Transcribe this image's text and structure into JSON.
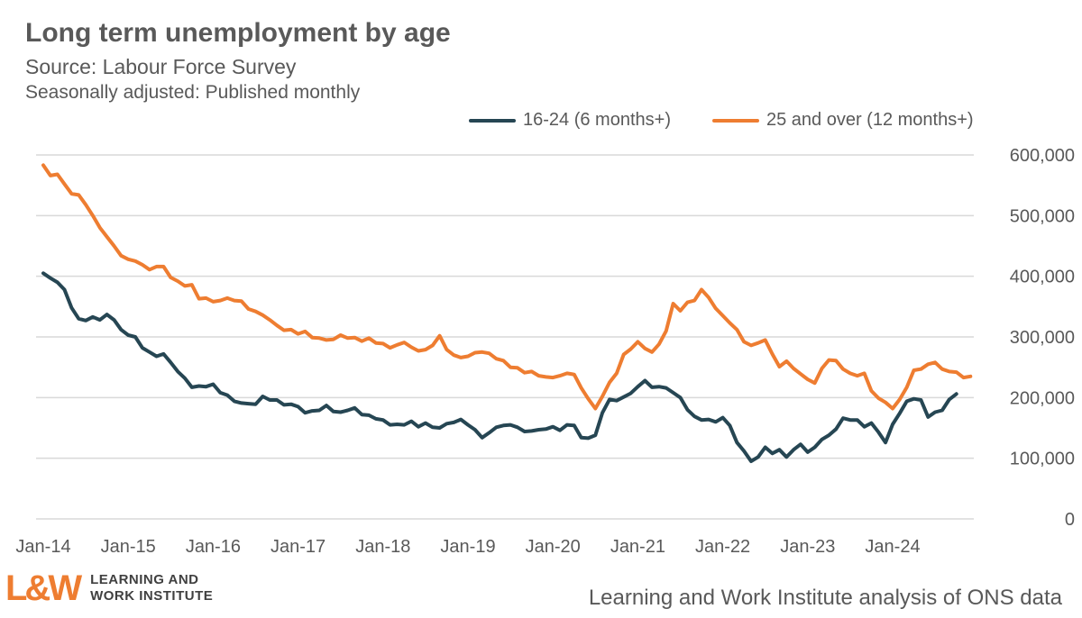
{
  "chart_data": {
    "type": "line",
    "title": "Long term unemployment by age",
    "subtitle": "Source: Labour Force Survey",
    "subtitle2": "Seasonally adjusted: Published monthly",
    "x_start": "Jan-14",
    "x_tick_labels": [
      "Jan-14",
      "Jan-15",
      "Jan-16",
      "Jan-17",
      "Jan-18",
      "Jan-19",
      "Jan-20",
      "Jan-21",
      "Jan-22",
      "Jan-23",
      "Jan-24"
    ],
    "y_tick_labels": [
      "0",
      "100,000",
      "200,000",
      "300,000",
      "400,000",
      "500,000",
      "600,000"
    ],
    "ylim": [
      0,
      600000
    ],
    "grid": true,
    "legend_position": "top",
    "series": [
      {
        "name": "16-24 (6 months+)",
        "color": "#264653",
        "values": [
          405000,
          397000,
          390000,
          378000,
          348000,
          330000,
          327000,
          333000,
          328000,
          337000,
          328000,
          312000,
          303000,
          300000,
          282000,
          275000,
          268000,
          272000,
          258000,
          243000,
          232000,
          217000,
          219000,
          218000,
          222000,
          208000,
          204000,
          194000,
          191000,
          190000,
          189000,
          202000,
          196000,
          196000,
          188000,
          189000,
          185000,
          175000,
          178000,
          179000,
          187000,
          177000,
          176000,
          179000,
          183000,
          172000,
          171000,
          165000,
          163000,
          155000,
          156000,
          155000,
          161000,
          152000,
          158000,
          151000,
          150000,
          157000,
          159000,
          164000,
          155000,
          147000,
          134000,
          142000,
          151000,
          154000,
          155000,
          151000,
          144000,
          145000,
          147000,
          148000,
          152000,
          146000,
          155000,
          154000,
          134000,
          133000,
          138000,
          175000,
          197000,
          195000,
          201000,
          207000,
          218000,
          228000,
          217000,
          218000,
          216000,
          208000,
          200000,
          180000,
          169000,
          163000,
          164000,
          160000,
          167000,
          154000,
          126000,
          112000,
          95000,
          102000,
          118000,
          108000,
          114000,
          102000,
          114000,
          123000,
          110000,
          118000,
          131000,
          138000,
          148000,
          166000,
          163000,
          163000,
          152000,
          158000,
          143000,
          126000,
          156000,
          174000,
          194000,
          198000,
          196000,
          168000,
          176000,
          179000,
          197000,
          206000
        ]
      },
      {
        "name": "25 and over (12 months+)",
        "color": "#ee7d31",
        "values": [
          583000,
          566000,
          568000,
          552000,
          536000,
          534000,
          518000,
          500000,
          480000,
          465000,
          450000,
          434000,
          428000,
          425000,
          419000,
          411000,
          416000,
          416000,
          398000,
          392000,
          384000,
          386000,
          363000,
          364000,
          358000,
          360000,
          364000,
          360000,
          359000,
          346000,
          342000,
          336000,
          328000,
          319000,
          311000,
          312000,
          305000,
          309000,
          299000,
          298000,
          295000,
          296000,
          303000,
          298000,
          299000,
          293000,
          298000,
          290000,
          289000,
          282000,
          287000,
          291000,
          283000,
          277000,
          279000,
          286000,
          302000,
          279000,
          270000,
          266000,
          268000,
          274000,
          275000,
          273000,
          264000,
          261000,
          250000,
          249000,
          241000,
          243000,
          236000,
          234000,
          233000,
          236000,
          240000,
          238000,
          216000,
          198000,
          182000,
          202000,
          225000,
          240000,
          271000,
          280000,
          292000,
          281000,
          275000,
          288000,
          310000,
          355000,
          343000,
          357000,
          360000,
          378000,
          365000,
          347000,
          335000,
          323000,
          312000,
          292000,
          286000,
          290000,
          295000,
          272000,
          251000,
          260000,
          248000,
          239000,
          230000,
          224000,
          248000,
          262000,
          261000,
          247000,
          240000,
          236000,
          240000,
          211000,
          199000,
          192000,
          182000,
          197000,
          217000,
          245000,
          247000,
          255000,
          258000,
          247000,
          243000,
          242000,
          233000,
          235000
        ]
      }
    ]
  },
  "logo": {
    "mark": "L&W",
    "line1": "LEARNING AND",
    "line2": "WORK INSTITUTE"
  },
  "footer_text": "Learning and Work Institute analysis of ONS data"
}
